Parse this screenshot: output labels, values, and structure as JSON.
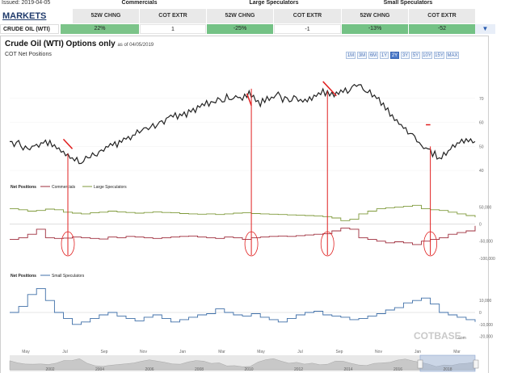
{
  "header": {
    "issued": "Issued: 2019-04-05",
    "markets": "MARKETS",
    "groups": [
      "Commercials",
      "Large Speculators",
      "Small Speculators"
    ],
    "columns": [
      "52W CHNG",
      "COT EXTR",
      "52W CHNG",
      "COT EXTR",
      "52W CHNG",
      "COT EXTR"
    ],
    "row": {
      "market": "CRUDE OIL (WTI)",
      "values": [
        "22%",
        "1",
        "-25%",
        "-1",
        "-13%",
        "-52"
      ]
    }
  },
  "chart": {
    "title": "Crude Oil (WTI) Options only",
    "as_of": "as of 04/05/2019",
    "subtitle": "COT Net Positions",
    "zoom_buttons": [
      "1M",
      "3M",
      "6M",
      "1Y",
      "2Y",
      "3Y",
      "5Y",
      "10Y",
      "15Y",
      "MAX"
    ],
    "zoom_selected": "2Y",
    "watermark": "COTBASE",
    "watermark_suffix": ".com",
    "colors": {
      "price": "#222222",
      "commercials": "#9e2c3b",
      "large": "#7f9a3b",
      "small": "#3f6fa8",
      "annotation": "#e02020"
    }
  },
  "chart_data": [
    {
      "type": "line",
      "name": "price",
      "ylim": [
        35,
        80
      ],
      "yticks": [
        40,
        50,
        60,
        70
      ],
      "x_range": [
        0,
        104
      ],
      "x": [
        0,
        2,
        4,
        6,
        8,
        10,
        12,
        14,
        16,
        18,
        20,
        22,
        24,
        26,
        28,
        30,
        32,
        34,
        36,
        38,
        40,
        42,
        44,
        46,
        48,
        50,
        52,
        54,
        56,
        58,
        60,
        62,
        64,
        66,
        68,
        70,
        72,
        74,
        76,
        78,
        80,
        82,
        84,
        86,
        88,
        90,
        92,
        94,
        96,
        98,
        100,
        102,
        104
      ],
      "values": [
        52,
        51,
        49,
        50,
        52,
        50,
        47,
        45,
        44,
        46,
        48,
        50,
        51,
        53,
        55,
        57,
        58,
        60,
        62,
        63,
        64,
        66,
        68,
        69,
        70,
        71,
        70,
        72,
        68,
        70,
        71,
        69,
        70,
        69,
        71,
        73,
        71,
        72,
        74,
        76,
        73,
        70,
        66,
        62,
        58,
        54,
        50,
        48,
        45,
        48,
        51,
        53,
        52
      ],
      "annotation_down_segments": [
        [
          12,
          14,
          53,
          49
        ],
        [
          53,
          54,
          72,
          67
        ],
        [
          70,
          73,
          77,
          71
        ]
      ],
      "annotation_flat_segment": [
        93,
        94,
        59,
        59
      ],
      "annotation_vlines": [
        13,
        54,
        71,
        94
      ]
    },
    {
      "type": "line",
      "legend_title": "Net Positions",
      "series": [
        {
          "name": "Commercials",
          "values": [
            -45,
            -40,
            -30,
            -15,
            -40,
            -42,
            -41,
            -38,
            -40,
            -42,
            -44,
            -38,
            -40,
            -36,
            -38,
            -40,
            -42,
            -40,
            -38,
            -36,
            -35,
            -38,
            -40,
            -42,
            -38,
            -40,
            -45,
            -40,
            -38,
            -36,
            -35,
            -36,
            -34,
            -32,
            -30,
            -28,
            -20,
            -12,
            -15,
            -40,
            -45,
            -50,
            -55,
            -52,
            -55,
            -60,
            -50,
            -45,
            -40,
            -30,
            -25,
            -20,
            -5
          ]
        },
        {
          "name": "Large Speculators",
          "values": [
            45,
            42,
            38,
            40,
            44,
            42,
            35,
            32,
            30,
            33,
            35,
            38,
            36,
            34,
            32,
            34,
            36,
            34,
            33,
            31,
            30,
            29,
            30,
            28,
            30,
            32,
            33,
            31,
            30,
            29,
            28,
            27,
            26,
            25,
            24,
            22,
            18,
            10,
            14,
            30,
            38,
            45,
            48,
            50,
            52,
            55,
            45,
            42,
            40,
            35,
            30,
            25,
            20
          ]
        }
      ],
      "yticks": [
        50000,
        0,
        -50000,
        -100000
      ],
      "ytick_labels": [
        "50,000",
        "0",
        "-50,000",
        "-100,000"
      ],
      "ylim": [
        -110000,
        70000
      ],
      "annotation_circles_x": [
        13,
        54,
        71,
        94
      ]
    },
    {
      "type": "line",
      "legend_title": "Net Positions",
      "series": [
        {
          "name": "Small Speculators",
          "values": [
            0,
            5,
            15,
            20,
            10,
            0,
            -5,
            -10,
            -8,
            -5,
            -2,
            0,
            -3,
            -5,
            -7,
            -4,
            -2,
            -5,
            -8,
            -6,
            -4,
            -2,
            -1,
            3,
            0,
            -2,
            -3,
            -1,
            -4,
            -6,
            -8,
            -5,
            -2,
            0,
            1,
            -2,
            -3,
            -4,
            -6,
            -5,
            -3,
            -1,
            2,
            4,
            8,
            10,
            12,
            7,
            0,
            -2,
            -4,
            -6,
            -8
          ]
        }
      ],
      "yticks": [
        10000,
        0,
        -10000,
        -20000
      ],
      "ytick_labels": [
        "10,000",
        "0",
        "-10,000",
        "-20,000"
      ],
      "ylim": [
        -25000,
        25000
      ]
    },
    {
      "type": "area",
      "name": "navigator",
      "month_labels": [
        "May",
        "Jul",
        "Sep",
        "Nov",
        "Jan",
        "Mar",
        "May",
        "Jul",
        "Sep",
        "Nov",
        "Jan",
        "Mar"
      ],
      "year_labels": [
        "2002",
        "2004",
        "2006",
        "2008",
        "2010",
        "2012",
        "2014",
        "2016",
        "2018"
      ]
    }
  ]
}
